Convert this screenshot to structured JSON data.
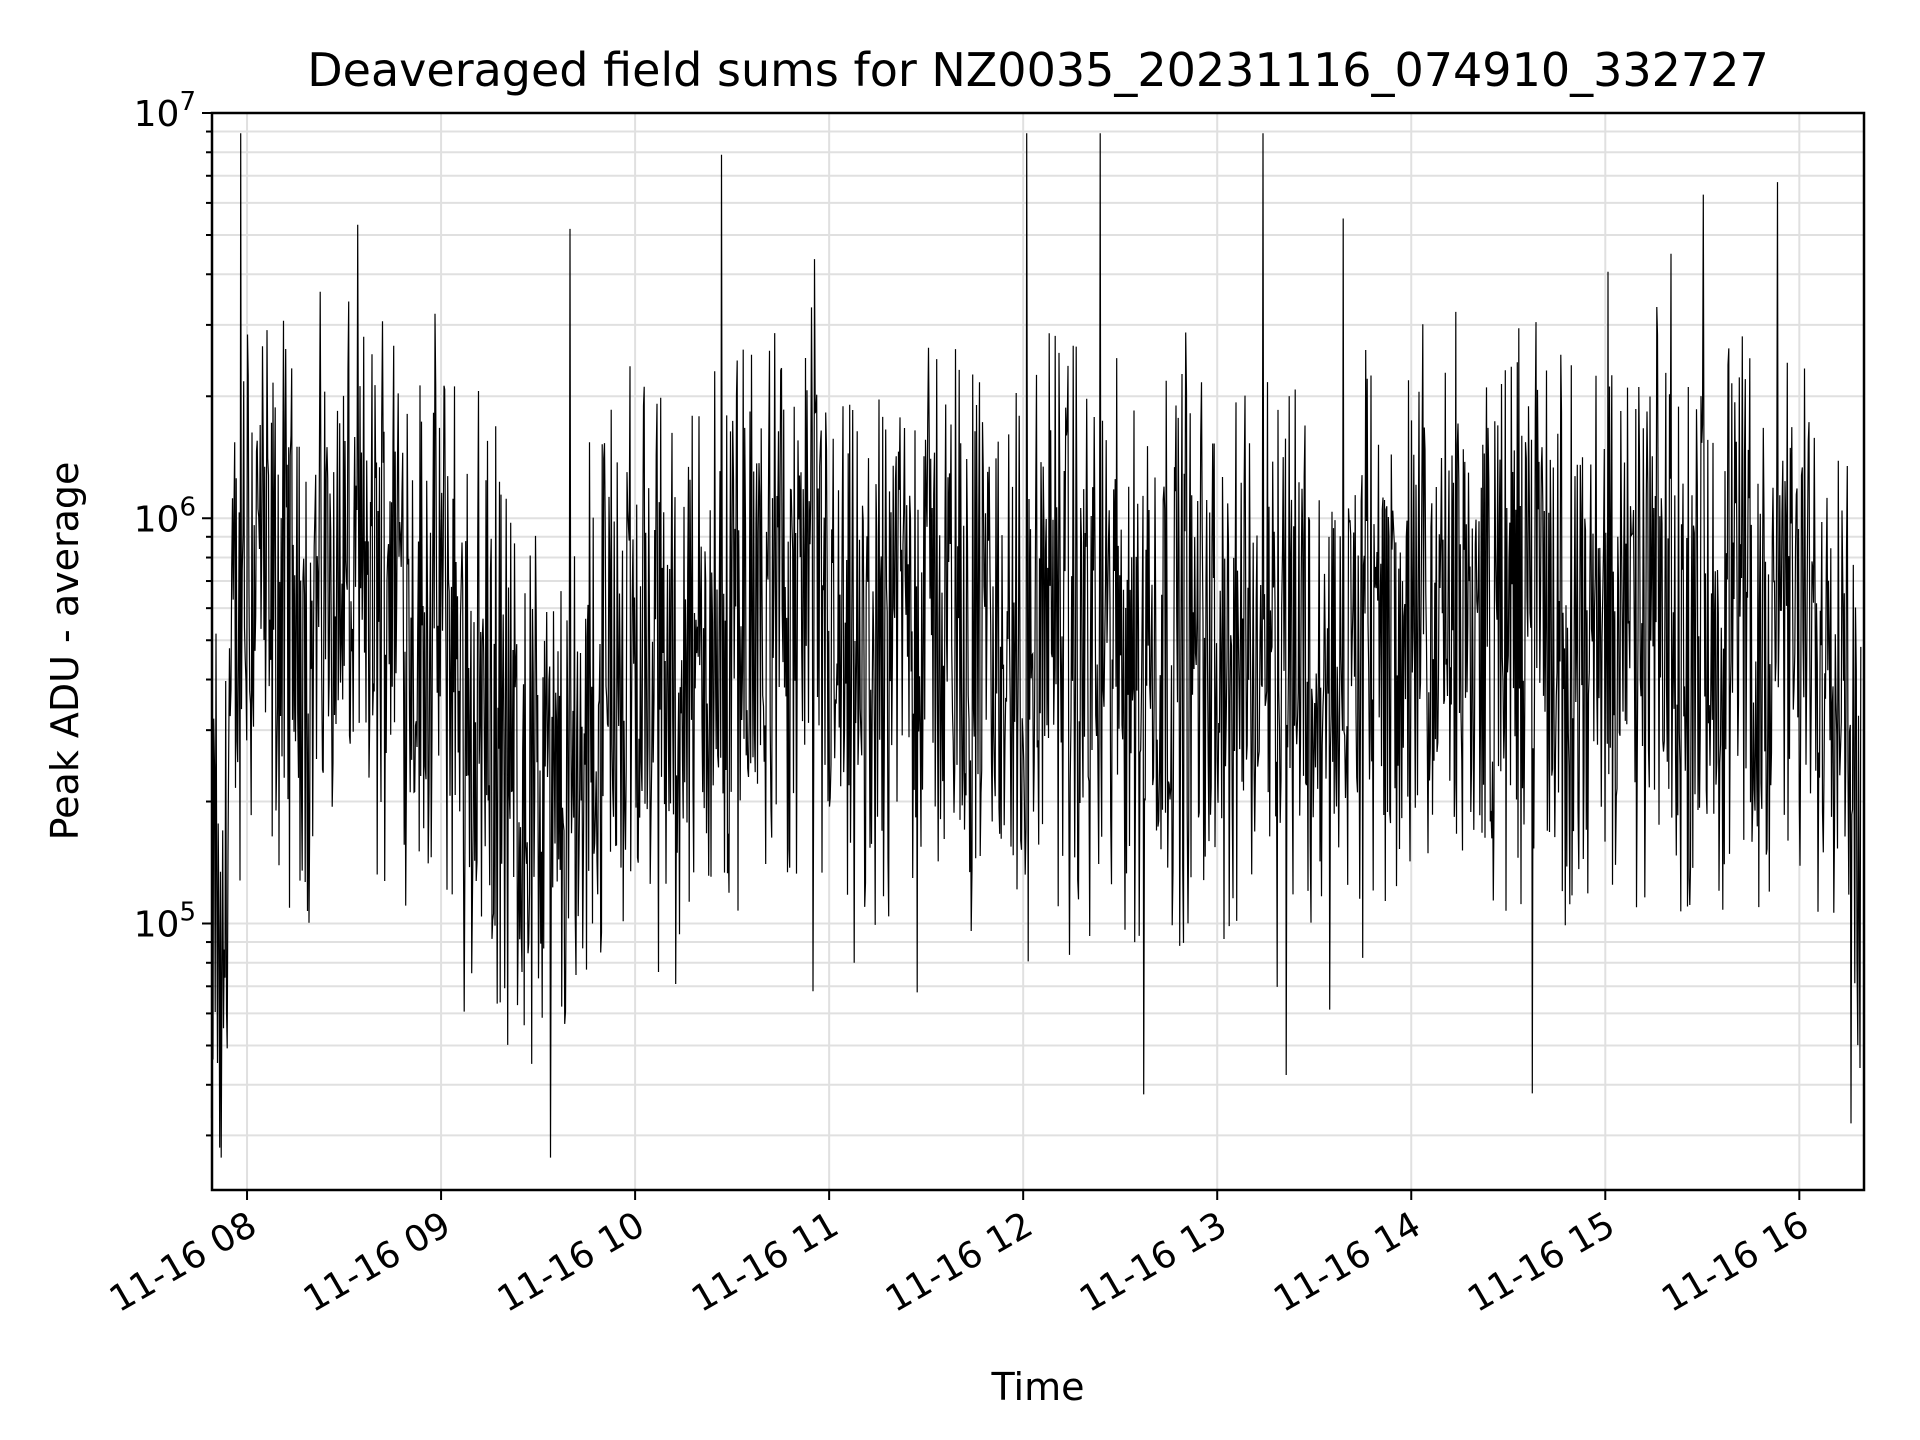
{
  "chart_data": {
    "type": "line",
    "title": "Deaveraged field sums for NZ0035_20231116_074910_332727",
    "xlabel": "Time",
    "ylabel": "Peak ADU - average",
    "yscale": "log",
    "ylim": [
      22000,
      10000000
    ],
    "xlim": [
      "2023-11-16 07:49:10",
      "2023-11-16 16:20:00"
    ],
    "x_ticks": [
      "11-16 08",
      "11-16 09",
      "11-16 10",
      "11-16 11",
      "11-16 12",
      "11-16 13",
      "11-16 14",
      "11-16 15",
      "11-16 16"
    ],
    "x_tick_times": [
      "2023-11-16 08:00",
      "2023-11-16 09:00",
      "2023-11-16 10:00",
      "2023-11-16 11:00",
      "2023-11-16 12:00",
      "2023-11-16 13:00",
      "2023-11-16 14:00",
      "2023-11-16 15:00",
      "2023-11-16 16:00"
    ],
    "y_ticks": [
      {
        "base": "10",
        "exp": "5",
        "value": 100000
      },
      {
        "base": "10",
        "exp": "6",
        "value": 1000000
      },
      {
        "base": "10",
        "exp": "7",
        "value": 10000000
      }
    ],
    "grid": true,
    "line_color": "#000000",
    "series": [
      {
        "x": [
          "2023-11-16 07:49",
          "2023-11-16 07:50",
          "2023-11-16 07:52",
          "2023-11-16 07:54",
          "2023-11-16 07:57",
          "2023-11-16 08:00",
          "2023-11-16 08:04",
          "2023-11-16 08:07",
          "2023-11-16 08:12",
          "2023-11-16 08:18",
          "2023-11-16 08:25",
          "2023-11-16 08:33",
          "2023-11-16 08:40",
          "2023-11-16 08:44",
          "2023-11-16 08:48",
          "2023-11-16 08:53",
          "2023-11-16 09:00",
          "2023-11-16 09:08",
          "2023-11-16 09:14",
          "2023-11-16 09:20",
          "2023-11-16 09:27",
          "2023-11-16 09:34",
          "2023-11-16 09:40",
          "2023-11-16 09:46",
          "2023-11-16 09:52",
          "2023-11-16 09:57",
          "2023-11-16 10:03",
          "2023-11-16 10:10",
          "2023-11-16 10:18",
          "2023-11-16 10:27",
          "2023-11-16 10:35",
          "2023-11-16 10:42",
          "2023-11-16 10:48",
          "2023-11-16 10:53",
          "2023-11-16 10:58",
          "2023-11-16 11:05",
          "2023-11-16 11:12",
          "2023-11-16 11:20",
          "2023-11-16 11:28",
          "2023-11-16 11:35",
          "2023-11-16 11:42",
          "2023-11-16 11:50",
          "2023-11-16 11:58",
          "2023-11-16 12:06",
          "2023-11-16 12:13",
          "2023-11-16 12:20",
          "2023-11-16 12:28",
          "2023-11-16 12:36",
          "2023-11-16 12:44",
          "2023-11-16 12:52",
          "2023-11-16 13:00",
          "2023-11-16 13:08",
          "2023-11-16 13:16",
          "2023-11-16 13:24",
          "2023-11-16 13:32",
          "2023-11-16 13:40",
          "2023-11-16 13:48",
          "2023-11-16 13:56",
          "2023-11-16 14:04",
          "2023-11-16 14:12",
          "2023-11-16 14:20",
          "2023-11-16 14:28",
          "2023-11-16 14:36",
          "2023-11-16 14:44",
          "2023-11-16 14:52",
          "2023-11-16 15:00",
          "2023-11-16 15:08",
          "2023-11-16 15:16",
          "2023-11-16 15:24",
          "2023-11-16 15:32",
          "2023-11-16 15:40",
          "2023-11-16 15:48",
          "2023-11-16 15:56",
          "2023-11-16 16:04",
          "2023-11-16 16:12",
          "2023-11-16 16:19"
        ],
        "y": [
          28000,
          190000,
          35000,
          250000,
          500000,
          680000,
          900000,
          520000,
          650000,
          450000,
          800000,
          700000,
          600000,
          900000,
          750000,
          500000,
          600000,
          420000,
          350000,
          280000,
          200000,
          160000,
          190000,
          300000,
          420000,
          500000,
          470000,
          380000,
          420000,
          480000,
          550000,
          520000,
          600000,
          650000,
          550000,
          350000,
          380000,
          600000,
          700000,
          600000,
          520000,
          480000,
          430000,
          520000,
          500000,
          480000,
          520000,
          450000,
          520000,
          480000,
          380000,
          420000,
          550000,
          600000,
          300000,
          400000,
          550000,
          500000,
          420000,
          600000,
          560000,
          500000,
          700000,
          520000,
          420000,
          550000,
          480000,
          600000,
          500000,
          520000,
          620000,
          480000,
          500000,
          520000,
          600000,
          200000
        ]
      }
    ]
  }
}
